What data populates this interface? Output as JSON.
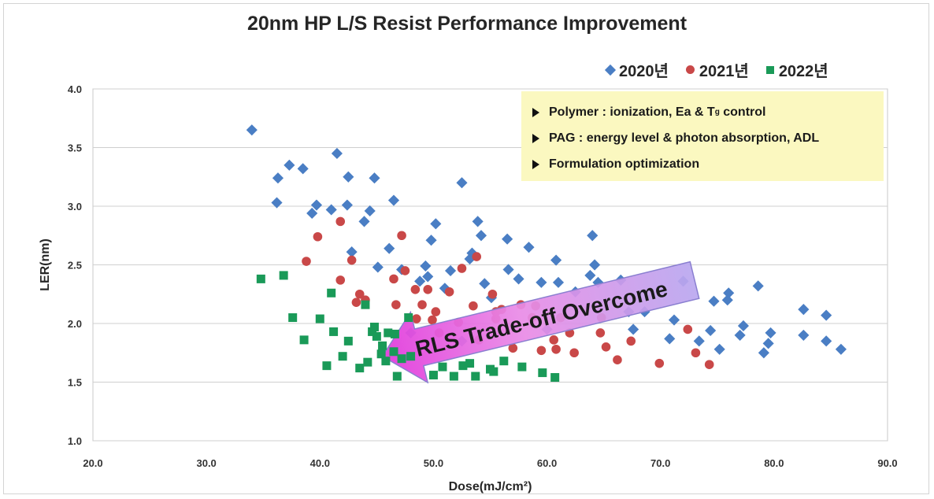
{
  "chart_data": {
    "type": "scatter",
    "title": "20nm HP L/S Resist Performance Improvement",
    "xlabel": "Dose(mJ/cm²)",
    "ylabel": "LER(nm)",
    "xlim": [
      20.0,
      90.0
    ],
    "ylim": [
      1.0,
      4.0
    ],
    "x_ticks": [
      "20.0",
      "30.0",
      "40.0",
      "50.0",
      "60.0",
      "70.0",
      "80.0",
      "90.0"
    ],
    "y_ticks": [
      "1.0",
      "1.5",
      "2.0",
      "2.5",
      "3.0",
      "3.5",
      "4.0"
    ],
    "grid": "horizontal",
    "legend_position": "top-right",
    "series": [
      {
        "name": "2020년",
        "color": "#4a7ec4",
        "marker": "diamond",
        "points": [
          [
            34.0,
            3.65
          ],
          [
            36.3,
            3.24
          ],
          [
            37.3,
            3.35
          ],
          [
            38.5,
            3.32
          ],
          [
            36.2,
            3.03
          ],
          [
            39.7,
            3.01
          ],
          [
            39.3,
            2.94
          ],
          [
            41.0,
            2.97
          ],
          [
            41.5,
            3.45
          ],
          [
            42.5,
            3.25
          ],
          [
            42.4,
            3.01
          ],
          [
            44.4,
            2.96
          ],
          [
            43.9,
            2.87
          ],
          [
            44.8,
            3.24
          ],
          [
            46.5,
            3.05
          ],
          [
            42.8,
            2.61
          ],
          [
            45.1,
            2.48
          ],
          [
            46.1,
            2.64
          ],
          [
            47.2,
            2.46
          ],
          [
            48.8,
            2.36
          ],
          [
            49.3,
            2.49
          ],
          [
            49.5,
            2.4
          ],
          [
            49.8,
            2.71
          ],
          [
            50.2,
            2.85
          ],
          [
            51.0,
            2.3
          ],
          [
            51.5,
            2.45
          ],
          [
            52.5,
            3.2
          ],
          [
            53.2,
            2.55
          ],
          [
            53.4,
            2.6
          ],
          [
            53.9,
            2.87
          ],
          [
            54.2,
            2.75
          ],
          [
            54.5,
            2.34
          ],
          [
            55.1,
            2.22
          ],
          [
            56.5,
            2.72
          ],
          [
            56.6,
            2.46
          ],
          [
            57.5,
            2.38
          ],
          [
            58.4,
            2.65
          ],
          [
            59.5,
            2.35
          ],
          [
            60.8,
            2.54
          ],
          [
            61.0,
            2.35
          ],
          [
            62.5,
            2.27
          ],
          [
            63.8,
            2.41
          ],
          [
            64.0,
            2.75
          ],
          [
            64.2,
            2.5
          ],
          [
            64.5,
            2.35
          ],
          [
            66.5,
            2.37
          ],
          [
            67.2,
            2.1
          ],
          [
            68.6,
            2.1
          ],
          [
            67.6,
            1.95
          ],
          [
            70.8,
            1.87
          ],
          [
            71.2,
            2.03
          ],
          [
            72.0,
            2.36
          ],
          [
            73.4,
            1.85
          ],
          [
            74.4,
            1.94
          ],
          [
            74.7,
            2.19
          ],
          [
            75.2,
            1.78
          ],
          [
            75.9,
            2.2
          ],
          [
            76.0,
            2.26
          ],
          [
            77.0,
            1.9
          ],
          [
            77.3,
            1.98
          ],
          [
            78.6,
            2.32
          ],
          [
            79.1,
            1.75
          ],
          [
            79.5,
            1.83
          ],
          [
            79.7,
            1.92
          ],
          [
            82.6,
            2.12
          ],
          [
            82.6,
            1.9
          ],
          [
            84.6,
            2.07
          ],
          [
            84.6,
            1.85
          ],
          [
            85.9,
            1.78
          ],
          [
            60.0,
            1.95
          ],
          [
            48.0,
            1.92
          ],
          [
            52.5,
            1.85
          ]
        ]
      },
      {
        "name": "2021년",
        "color": "#c94848",
        "marker": "circle",
        "points": [
          [
            38.8,
            2.53
          ],
          [
            39.8,
            2.74
          ],
          [
            41.8,
            2.87
          ],
          [
            41.8,
            2.37
          ],
          [
            42.8,
            2.54
          ],
          [
            43.2,
            2.18
          ],
          [
            43.5,
            2.25
          ],
          [
            44.0,
            2.2
          ],
          [
            46.5,
            2.38
          ],
          [
            46.7,
            2.16
          ],
          [
            47.2,
            2.75
          ],
          [
            47.5,
            2.45
          ],
          [
            48.4,
            2.29
          ],
          [
            48.5,
            2.04
          ],
          [
            49.0,
            2.16
          ],
          [
            49.5,
            2.29
          ],
          [
            49.9,
            2.03
          ],
          [
            50.5,
            1.92
          ],
          [
            51.4,
            2.27
          ],
          [
            52.2,
            2.01
          ],
          [
            52.5,
            2.47
          ],
          [
            53.5,
            2.15
          ],
          [
            53.8,
            2.57
          ],
          [
            54.0,
            1.86
          ],
          [
            55.2,
            2.25
          ],
          [
            55.5,
            2.04
          ],
          [
            56.0,
            2.12
          ],
          [
            57.0,
            1.79
          ],
          [
            57.7,
            2.16
          ],
          [
            58.7,
            2.05
          ],
          [
            59.0,
            2.15
          ],
          [
            59.5,
            1.77
          ],
          [
            60.6,
            1.86
          ],
          [
            60.8,
            1.78
          ],
          [
            61.2,
            2.05
          ],
          [
            62.0,
            1.92
          ],
          [
            62.4,
            1.75
          ],
          [
            64.7,
            1.92
          ],
          [
            64.8,
            2.05
          ],
          [
            65.2,
            1.8
          ],
          [
            66.2,
            1.69
          ],
          [
            67.4,
            1.85
          ],
          [
            69.9,
            1.66
          ],
          [
            72.4,
            1.95
          ],
          [
            73.1,
            1.75
          ],
          [
            74.3,
            1.65
          ],
          [
            50.2,
            2.1
          ],
          [
            55.5,
            2.1
          ]
        ]
      },
      {
        "name": "2022년",
        "color": "#1a9a58",
        "marker": "square",
        "points": [
          [
            34.8,
            2.38
          ],
          [
            36.8,
            2.41
          ],
          [
            37.6,
            2.05
          ],
          [
            38.6,
            1.86
          ],
          [
            40.0,
            2.04
          ],
          [
            40.6,
            1.64
          ],
          [
            41.0,
            2.26
          ],
          [
            41.2,
            1.93
          ],
          [
            42.0,
            1.72
          ],
          [
            42.5,
            1.85
          ],
          [
            43.5,
            1.62
          ],
          [
            44.0,
            2.16
          ],
          [
            44.2,
            1.67
          ],
          [
            44.6,
            1.93
          ],
          [
            44.8,
            1.97
          ],
          [
            45.0,
            1.89
          ],
          [
            45.4,
            1.74
          ],
          [
            45.5,
            1.81
          ],
          [
            46.0,
            1.92
          ],
          [
            46.5,
            1.76
          ],
          [
            46.6,
            1.91
          ],
          [
            46.8,
            1.55
          ],
          [
            47.8,
            2.05
          ],
          [
            48.0,
            1.72
          ],
          [
            50.0,
            1.56
          ],
          [
            50.8,
            1.63
          ],
          [
            51.8,
            1.55
          ],
          [
            52.6,
            1.64
          ],
          [
            53.2,
            1.66
          ],
          [
            53.7,
            1.55
          ],
          [
            55.0,
            1.61
          ],
          [
            55.3,
            1.59
          ],
          [
            56.2,
            1.68
          ],
          [
            57.8,
            1.63
          ],
          [
            59.6,
            1.58
          ],
          [
            60.7,
            1.54
          ],
          [
            45.8,
            1.68
          ],
          [
            47.2,
            1.7
          ]
        ]
      }
    ],
    "annotation": {
      "lines": [
        "Polymer : ionization, Ea & T",
        "PAG : energy level & photon absorption, ADL",
        "Formulation optimization"
      ],
      "line1_sub": "g",
      "line1_suffix": " control"
    },
    "arrow": {
      "label": "RLS Trade-off Overcome",
      "from": [
        73.0,
        2.37
      ],
      "to": [
        45.5,
        1.72
      ],
      "color": "#e23cdc"
    }
  }
}
